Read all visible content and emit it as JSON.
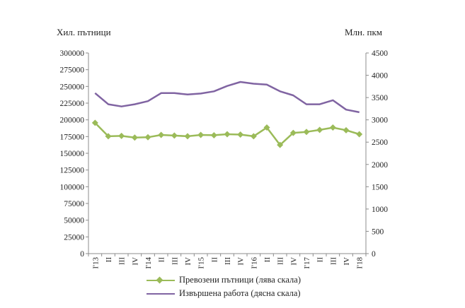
{
  "chart_data": {
    "type": "line",
    "left_unit": "Хил. пътници",
    "right_unit": "Млн. пкм",
    "categories": [
      "I'13",
      "II",
      "III",
      "IV",
      "I'14",
      "II",
      "III",
      "IV",
      "I'15",
      "II",
      "III",
      "IV",
      "I'16",
      "II",
      "III",
      "IV",
      "I'17",
      "II",
      "III",
      "IV",
      "I'18"
    ],
    "y_left": {
      "min": 0,
      "max": 300000,
      "step": 25000,
      "ticks": [
        "0",
        "25000",
        "50000",
        "75000",
        "100000",
        "125000",
        "150000",
        "175000",
        "200000",
        "225000",
        "250000",
        "275000",
        "300000"
      ]
    },
    "y_right": {
      "min": 0,
      "max": 4500,
      "step": 500,
      "ticks": [
        "0",
        "500",
        "1000",
        "1500",
        "2000",
        "2500",
        "3000",
        "3500",
        "4000",
        "4500"
      ]
    },
    "series": [
      {
        "name": "Превозени пътници (лява скала)",
        "axis": "left",
        "color": "#9bbb59",
        "marker": "diamond",
        "values": [
          195500,
          175500,
          176000,
          173500,
          174000,
          177500,
          176500,
          175500,
          177500,
          177000,
          178500,
          178000,
          175500,
          188500,
          162500,
          180500,
          182000,
          185000,
          188500,
          184500,
          178500
        ]
      },
      {
        "name": "Извършена работа (дясна скала)",
        "axis": "right",
        "color": "#8064a2",
        "marker": "none",
        "values": [
          3600,
          3350,
          3300,
          3350,
          3420,
          3600,
          3600,
          3570,
          3590,
          3640,
          3760,
          3850,
          3810,
          3790,
          3640,
          3550,
          3350,
          3350,
          3440,
          3230,
          3170
        ]
      }
    ],
    "legend_position": "bottom",
    "grid": false
  }
}
